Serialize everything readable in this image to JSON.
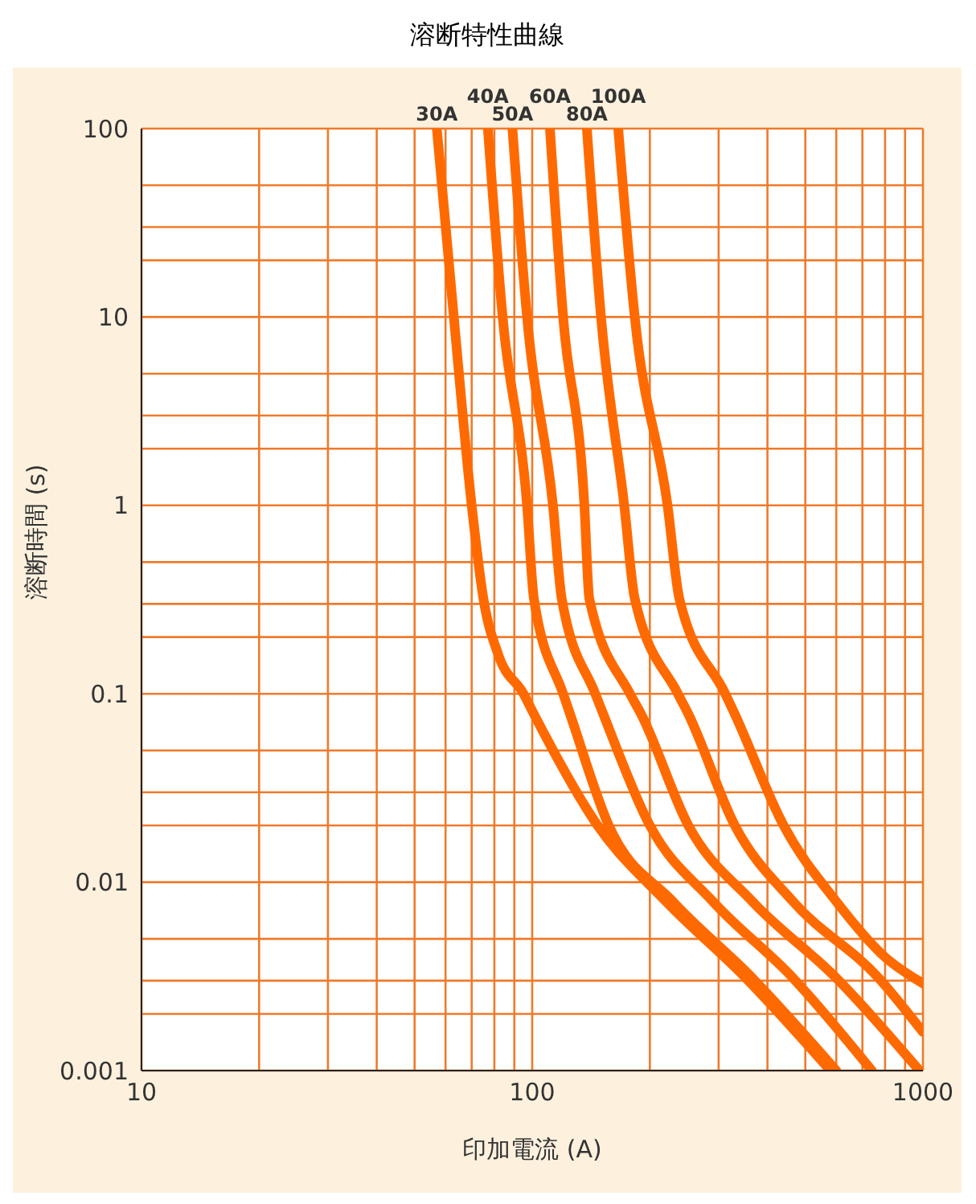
{
  "chart_data": {
    "type": "line",
    "title": "溶断特性曲線",
    "xlabel": "印加電流 (A)",
    "ylabel": "溶断時間 (s)",
    "log": "xy",
    "grid": true,
    "legend": false,
    "marker": "none",
    "line_style": "solid",
    "xlim": [
      10,
      1000
    ],
    "ylim": [
      0.001,
      100
    ],
    "xticks": [
      10,
      {
        "value": 20,
        "label": null
      },
      {
        "value": 30,
        "label": null
      },
      {
        "value": 40,
        "label": null
      },
      {
        "value": 50,
        "label": null
      },
      {
        "value": 60,
        "label": null
      },
      {
        "value": 70,
        "label": null
      },
      {
        "value": 80,
        "label": null
      },
      {
        "value": 90,
        "label": null
      },
      100,
      {
        "value": 200,
        "label": null
      },
      {
        "value": 300,
        "label": null
      },
      {
        "value": 400,
        "label": null
      },
      {
        "value": 500,
        "label": null
      },
      {
        "value": 600,
        "label": null
      },
      {
        "value": 700,
        "label": null
      },
      {
        "value": 800,
        "label": null
      },
      {
        "value": 900,
        "label": null
      },
      1000
    ],
    "yticks": [
      0.001,
      {
        "value": 0.002,
        "label": null
      },
      {
        "value": 0.003,
        "label": null
      },
      {
        "value": 0.005,
        "label": null
      },
      0.01,
      {
        "value": 0.02,
        "label": null
      },
      {
        "value": 0.03,
        "label": null
      },
      {
        "value": 0.05,
        "label": null
      },
      0.1,
      {
        "value": 0.2,
        "label": null
      },
      {
        "value": 0.3,
        "label": null
      },
      {
        "value": 0.5,
        "label": null
      },
      1,
      {
        "value": 2,
        "label": null
      },
      {
        "value": 3,
        "label": null
      },
      {
        "value": 5,
        "label": null
      },
      10,
      {
        "value": 20,
        "label": null
      },
      {
        "value": 30,
        "label": null
      },
      {
        "value": 50,
        "label": null
      },
      100
    ],
    "series": [
      {
        "name": "30A",
        "color": "#ff6a00",
        "x": [
          57,
          63,
          70,
          75,
          82,
          95,
          101,
          147,
          220,
          352,
          580
        ],
        "values": [
          100,
          10,
          1,
          0.32,
          0.16,
          0.1,
          0.078,
          0.02,
          0.0079,
          0.0031,
          0.001
        ]
      },
      {
        "name": "40A",
        "color": "#ff6a00",
        "x": [
          77,
          84,
          97,
          101,
          120,
          125,
          157,
          229,
          366,
          600
        ],
        "values": [
          100,
          10,
          1,
          0.32,
          0.1,
          0.078,
          0.02,
          0.0079,
          0.0031,
          0.001
        ]
      },
      {
        "name": "50A",
        "color": "#ff6a00",
        "x": [
          89,
          97,
          113,
          119,
          145,
          152,
          200,
          290,
          465,
          740
        ],
        "values": [
          100,
          10,
          1,
          0.32,
          0.1,
          0.078,
          0.02,
          0.0079,
          0.0031,
          0.001
        ]
      },
      {
        "name": "60A",
        "color": "#ff6a00",
        "x": [
          111,
          120,
          136,
          140,
          178,
          190,
          251,
          366,
          600,
          980
        ],
        "values": [
          100,
          10,
          1,
          0.32,
          0.1,
          0.078,
          0.02,
          0.0079,
          0.0031,
          0.001
        ]
      },
      {
        "name": "80A",
        "color": "#ff6a00",
        "x": [
          138,
          150,
          172,
          183,
          236,
          251,
          330,
          465,
          770,
          1000
        ],
        "values": [
          100,
          10,
          1,
          0.32,
          0.1,
          0.078,
          0.02,
          0.0079,
          0.0031,
          0.0016
        ]
      },
      {
        "name": "100A",
        "color": "#ff6a00",
        "x": [
          166,
          183,
          222,
          238,
          312,
          330,
          440,
          600,
          800,
          1000
        ],
        "values": [
          100,
          10,
          1,
          0.32,
          0.1,
          0.078,
          0.02,
          0.0079,
          0.004,
          0.0029
        ]
      }
    ]
  }
}
